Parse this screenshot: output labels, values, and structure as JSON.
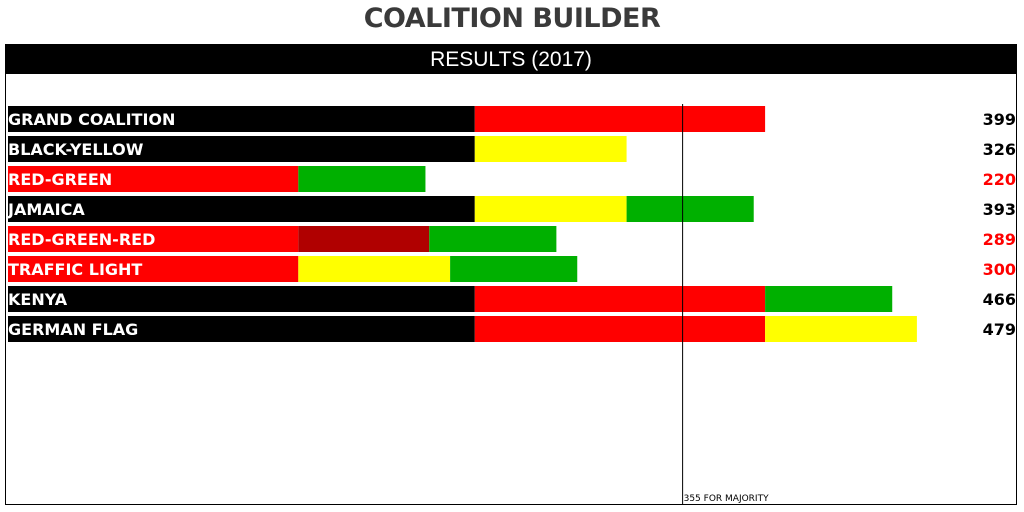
{
  "title": "COALITION BUILDER",
  "subtitle": "RESULTS (2017)",
  "colors": {
    "CDU": "#000000",
    "SPD": "#ff0000",
    "FDP": "#ffff00",
    "GRN": "#00b000",
    "LNK": "#b00000",
    "AFD": "#ff0000",
    "label_red": "#ff0000",
    "label_white": "#ffffff",
    "value_black": "#000000"
  },
  "chart_data": {
    "type": "bar",
    "orientation": "horizontal",
    "stacked": true,
    "xlim": [
      0,
      550
    ],
    "majority": {
      "value": 355,
      "label": "355 FOR MAJORITY"
    },
    "rows": [
      {
        "label": "GRAND COALITION",
        "total": "399",
        "lead": "CDU",
        "segments": [
          {
            "party": "CDU",
            "seats": 246
          },
          {
            "party": "SPD",
            "seats": 153
          }
        ]
      },
      {
        "label": "BLACK-YELLOW",
        "total": "326",
        "lead": "CDU",
        "segments": [
          {
            "party": "CDU",
            "seats": 246
          },
          {
            "party": "FDP",
            "seats": 80
          }
        ]
      },
      {
        "label": "RED-GREEN",
        "total": "220",
        "lead": "SPD",
        "segments": [
          {
            "party": "SPD",
            "seats": 153
          },
          {
            "party": "GRN",
            "seats": 67
          }
        ]
      },
      {
        "label": "JAMAICA",
        "total": "393",
        "lead": "CDU",
        "segments": [
          {
            "party": "CDU",
            "seats": 246
          },
          {
            "party": "FDP",
            "seats": 80
          },
          {
            "party": "GRN",
            "seats": 67
          }
        ]
      },
      {
        "label": "RED-GREEN-RED",
        "total": "289",
        "lead": "SPD",
        "segments": [
          {
            "party": "SPD",
            "seats": 153
          },
          {
            "party": "LNK",
            "seats": 69
          },
          {
            "party": "GRN",
            "seats": 67
          }
        ]
      },
      {
        "label": "TRAFFIC LIGHT",
        "total": "300",
        "lead": "SPD",
        "segments": [
          {
            "party": "SPD",
            "seats": 153
          },
          {
            "party": "FDP",
            "seats": 80
          },
          {
            "party": "GRN",
            "seats": 67
          }
        ]
      },
      {
        "label": "KENYA",
        "total": "466",
        "lead": "CDU",
        "segments": [
          {
            "party": "CDU",
            "seats": 246
          },
          {
            "party": "SPD",
            "seats": 153
          },
          {
            "party": "GRN",
            "seats": 67
          }
        ]
      },
      {
        "label": "GERMAN FLAG",
        "total": "479",
        "lead": "CDU",
        "segments": [
          {
            "party": "CDU",
            "seats": 246
          },
          {
            "party": "SPD",
            "seats": 153
          },
          {
            "party": "FDP",
            "seats": 80
          }
        ]
      }
    ]
  }
}
